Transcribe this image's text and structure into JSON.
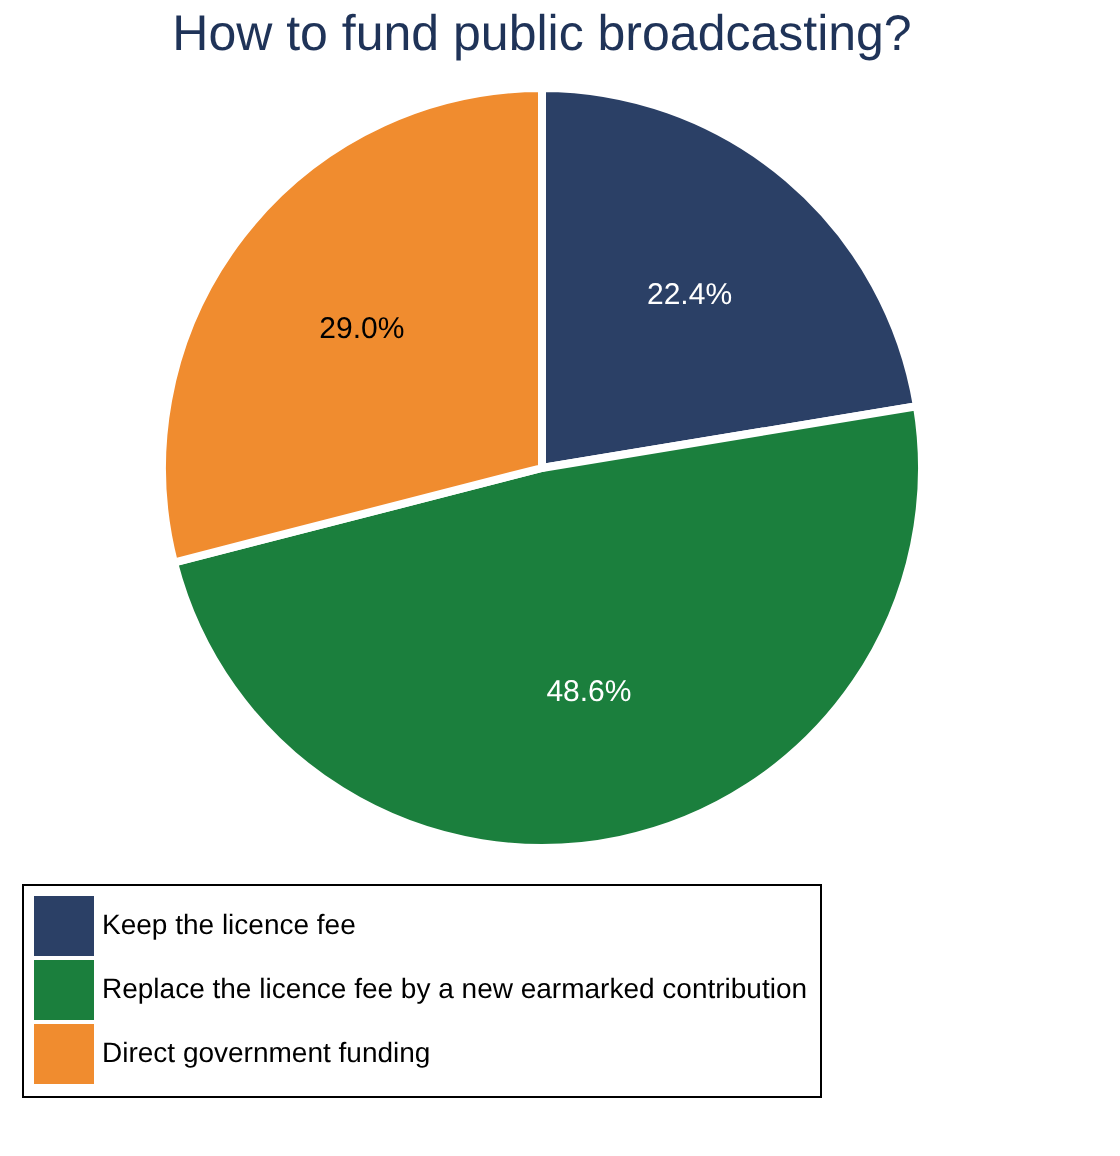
{
  "chart_data": {
    "type": "pie",
    "title": "How to fund public broadcasting?",
    "categories": [
      "Keep the licence fee",
      "Replace the licence fee by a new earmarked contribution",
      "Direct government funding"
    ],
    "values": [
      22.4,
      48.6,
      29.0
    ],
    "colors": [
      "#2b4066",
      "#1b7f3d",
      "#f08c2f"
    ],
    "value_labels": [
      "22.4%",
      "48.6%",
      "29.0%"
    ],
    "legend": "bottom"
  }
}
